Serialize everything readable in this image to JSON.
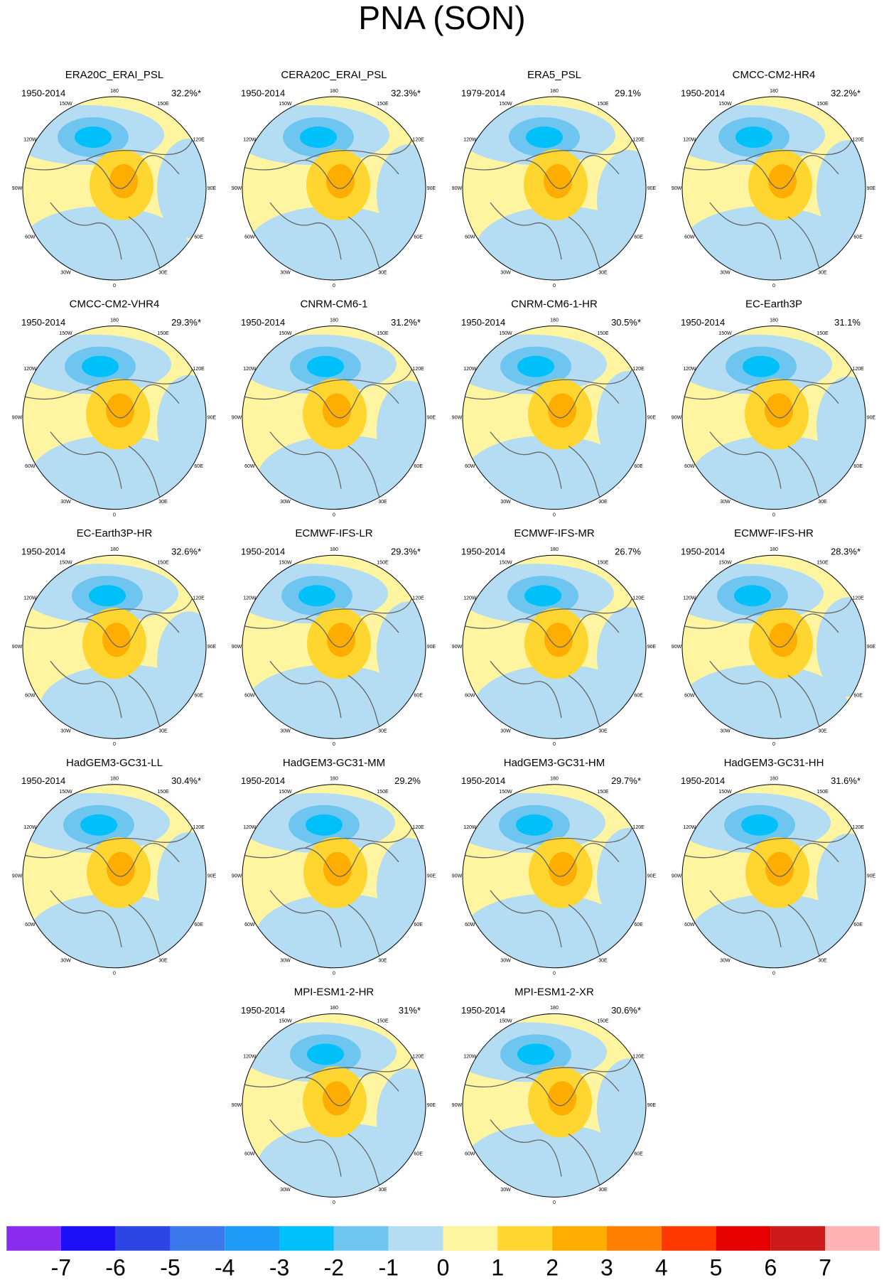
{
  "title": "PNA (SON)",
  "lon_labels": [
    "0",
    "30E",
    "60E",
    "90E",
    "120E",
    "150E",
    "180",
    "150W",
    "120W",
    "90W",
    "60W",
    "30W"
  ],
  "panels": [
    {
      "title": "ERA20C_ERAI_PSL",
      "period": "1950-2014",
      "variance": "32.2%*"
    },
    {
      "title": "CERA20C_ERAI_PSL",
      "period": "1950-2014",
      "variance": "32.3%*"
    },
    {
      "title": "ERA5_PSL",
      "period": "1979-2014",
      "variance": "29.1%"
    },
    {
      "title": "CMCC-CM2-HR4",
      "period": "1950-2014",
      "variance": "32.2%*"
    },
    {
      "title": "CMCC-CM2-VHR4",
      "period": "1950-2014",
      "variance": "29.3%*"
    },
    {
      "title": "CNRM-CM6-1",
      "period": "1950-2014",
      "variance": "31.2%*"
    },
    {
      "title": "CNRM-CM6-1-HR",
      "period": "1950-2014",
      "variance": "30.5%*"
    },
    {
      "title": "EC-Earth3P",
      "period": "1950-2014",
      "variance": "31.1%"
    },
    {
      "title": "EC-Earth3P-HR",
      "period": "1950-2014",
      "variance": "32.6%*"
    },
    {
      "title": "ECMWF-IFS-LR",
      "period": "1950-2014",
      "variance": "29.3%*"
    },
    {
      "title": "ECMWF-IFS-MR",
      "period": "1950-2014",
      "variance": "26.7%"
    },
    {
      "title": "ECMWF-IFS-HR",
      "period": "1950-2014",
      "variance": "28.3%*"
    },
    {
      "title": "HadGEM3-GC31-LL",
      "period": "1950-2014",
      "variance": "30.4%*"
    },
    {
      "title": "HadGEM3-GC31-MM",
      "period": "1950-2014",
      "variance": "29.2%"
    },
    {
      "title": "HadGEM3-GC31-HM",
      "period": "1950-2014",
      "variance": "29.7%*"
    },
    {
      "title": "HadGEM3-GC31-HH",
      "period": "1950-2014",
      "variance": "31.6%*"
    },
    {
      "title": "MPI-ESM1-2-HR",
      "period": "1950-2014",
      "variance": "31%*"
    },
    {
      "title": "MPI-ESM1-2-XR",
      "period": "1950-2014",
      "variance": "30.6%*"
    }
  ],
  "colorbar": {
    "colors": [
      "#8a2cf0",
      "#1a0ff5",
      "#2e45e6",
      "#3a78ec",
      "#1e9af7",
      "#00c0fa",
      "#6ec6f0",
      "#b4dcf2",
      "#fff5a0",
      "#ffd530",
      "#ffad00",
      "#ff7f00",
      "#ff3a00",
      "#e60000",
      "#cc1a1a",
      "#ffb3b3"
    ],
    "labels": [
      -7,
      -6,
      -5,
      -4,
      -3,
      -2,
      -1,
      0,
      1,
      2,
      3,
      4,
      5,
      6,
      7
    ]
  }
}
